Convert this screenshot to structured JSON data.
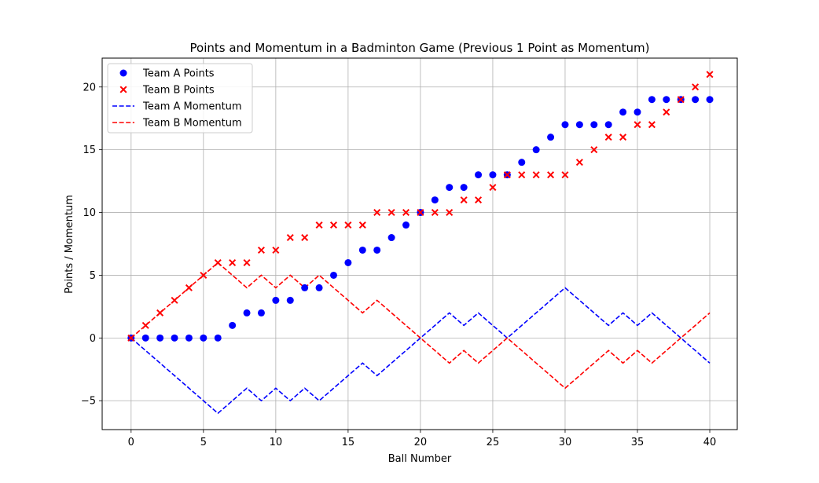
{
  "chart_data": {
    "type": "scatter",
    "title": "Points and Momentum in a Badminton Game (Previous 1 Point as Momentum)",
    "xlabel": "Ball Number",
    "ylabel": "Points / Momentum",
    "xlim": [
      -2,
      41.9
    ],
    "ylim": [
      -7.3,
      22.3
    ],
    "xticks": [
      0,
      5,
      10,
      15,
      20,
      25,
      30,
      35,
      40
    ],
    "yticks": [
      -5,
      0,
      5,
      10,
      15,
      20
    ],
    "ytick_labels": [
      "−5",
      "0",
      "5",
      "10",
      "15",
      "20"
    ],
    "grid": true,
    "legend_position": "upper-left",
    "x": [
      0,
      1,
      2,
      3,
      4,
      5,
      6,
      7,
      8,
      9,
      10,
      11,
      12,
      13,
      14,
      15,
      16,
      17,
      18,
      19,
      20,
      21,
      22,
      23,
      24,
      25,
      26,
      27,
      28,
      29,
      30,
      31,
      32,
      33,
      34,
      35,
      36,
      37,
      38,
      39,
      40
    ],
    "series": [
      {
        "name": "Team A Points",
        "kind": "scatter",
        "marker": "circle",
        "color": "#0000ff",
        "values": [
          0,
          0,
          0,
          0,
          0,
          0,
          0,
          1,
          2,
          2,
          3,
          3,
          4,
          4,
          5,
          6,
          7,
          7,
          8,
          9,
          10,
          11,
          12,
          12,
          13,
          13,
          13,
          14,
          15,
          16,
          17,
          17,
          17,
          17,
          18,
          18,
          19,
          19,
          19,
          19,
          19
        ]
      },
      {
        "name": "Team B Points",
        "kind": "scatter",
        "marker": "x",
        "color": "#ff0000",
        "values": [
          0,
          1,
          2,
          3,
          4,
          5,
          6,
          6,
          6,
          7,
          7,
          8,
          8,
          9,
          9,
          9,
          9,
          10,
          10,
          10,
          10,
          10,
          10,
          11,
          11,
          12,
          13,
          13,
          13,
          13,
          13,
          14,
          15,
          16,
          16,
          17,
          17,
          18,
          19,
          20,
          21
        ]
      },
      {
        "name": "Team A Momentum",
        "kind": "line",
        "dash": "dashed",
        "color": "#0000ff",
        "values": [
          0,
          -1,
          -2,
          -3,
          -4,
          -5,
          -6,
          -5,
          -4,
          -5,
          -4,
          -5,
          -4,
          -5,
          -4,
          -3,
          -2,
          -3,
          -2,
          -1,
          0,
          1,
          2,
          1,
          2,
          1,
          0,
          1,
          2,
          3,
          4,
          3,
          2,
          1,
          2,
          1,
          2,
          1,
          0,
          -1,
          -2
        ]
      },
      {
        "name": "Team B Momentum",
        "kind": "line",
        "dash": "dashed",
        "color": "#ff0000",
        "values": [
          0,
          1,
          2,
          3,
          4,
          5,
          6,
          5,
          4,
          5,
          4,
          5,
          4,
          5,
          4,
          3,
          2,
          3,
          2,
          1,
          0,
          -1,
          -2,
          -1,
          -2,
          -1,
          0,
          -1,
          -2,
          -3,
          -4,
          -3,
          -2,
          -1,
          -2,
          -1,
          -2,
          -1,
          0,
          1,
          2
        ]
      }
    ]
  }
}
